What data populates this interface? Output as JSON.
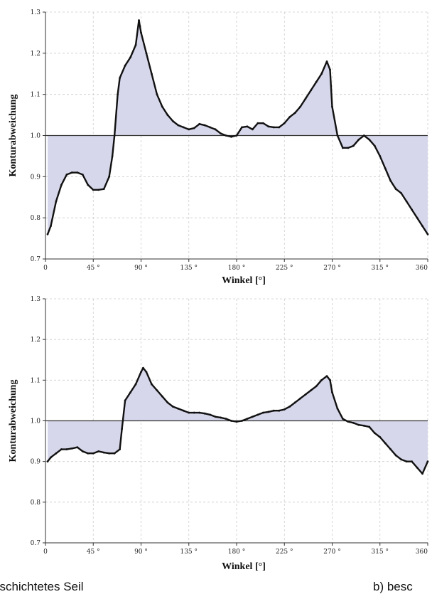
{
  "captions": {
    "a": "eschichtetes Seil",
    "b": "b)   besc"
  },
  "style": {
    "fill": "#d6d7ea",
    "line": "#111111",
    "reference_line": "#333333",
    "grid": "#cccccc"
  },
  "chart_data": [
    {
      "type": "line",
      "xlabel": "Winkel [°]",
      "ylabel": "Konturabweichung",
      "xlim": [
        0,
        360
      ],
      "ylim": [
        0.7,
        1.3
      ],
      "xticks": [
        "0",
        "45 °",
        "90 °",
        "135 °",
        "180 °",
        "225 °",
        "270 °",
        "315 °",
        "360"
      ],
      "yticks": [
        "0.7",
        "0.8",
        "0.9",
        "1.0",
        "1.1",
        "1.2",
        "1.3"
      ],
      "reference": 1.0,
      "grid": true,
      "x": [
        2,
        5,
        10,
        15,
        20,
        25,
        30,
        35,
        40,
        45,
        50,
        55,
        60,
        63,
        65,
        68,
        70,
        75,
        80,
        85,
        88,
        90,
        95,
        100,
        105,
        110,
        115,
        120,
        125,
        130,
        135,
        140,
        145,
        150,
        155,
        160,
        165,
        170,
        175,
        180,
        185,
        190,
        195,
        200,
        205,
        210,
        215,
        220,
        225,
        230,
        235,
        240,
        245,
        250,
        255,
        260,
        265,
        268,
        270,
        275,
        280,
        285,
        290,
        295,
        300,
        305,
        310,
        315,
        320,
        325,
        330,
        335,
        340,
        345,
        350,
        355,
        360
      ],
      "y": [
        0.76,
        0.78,
        0.84,
        0.88,
        0.905,
        0.91,
        0.91,
        0.905,
        0.88,
        0.868,
        0.868,
        0.87,
        0.9,
        0.95,
        1.0,
        1.1,
        1.14,
        1.17,
        1.19,
        1.22,
        1.28,
        1.25,
        1.2,
        1.15,
        1.1,
        1.07,
        1.05,
        1.035,
        1.025,
        1.02,
        1.015,
        1.018,
        1.028,
        1.025,
        1.02,
        1.015,
        1.005,
        1.0,
        0.997,
        1.0,
        1.02,
        1.022,
        1.015,
        1.03,
        1.03,
        1.022,
        1.02,
        1.02,
        1.03,
        1.045,
        1.055,
        1.07,
        1.09,
        1.11,
        1.13,
        1.15,
        1.18,
        1.16,
        1.07,
        1.0,
        0.97,
        0.97,
        0.975,
        0.99,
        1.0,
        0.99,
        0.975,
        0.95,
        0.92,
        0.89,
        0.87,
        0.86,
        0.84,
        0.82,
        0.8,
        0.78,
        0.76
      ]
    },
    {
      "type": "line",
      "xlabel": "Winkel [°]",
      "ylabel": "Konturabweichung",
      "xlim": [
        0,
        360
      ],
      "ylim": [
        0.7,
        1.3
      ],
      "xticks": [
        "0",
        "45 °",
        "90 °",
        "135 °",
        "180 °",
        "225 °",
        "270 °",
        "315 °",
        "360"
      ],
      "yticks": [
        "0.7",
        "0.8",
        "0.9",
        "1.0",
        "1.1",
        "1.2",
        "1.3"
      ],
      "reference": 1.0,
      "grid": true,
      "x": [
        2,
        5,
        10,
        15,
        20,
        25,
        30,
        35,
        40,
        45,
        50,
        55,
        60,
        65,
        70,
        72,
        75,
        80,
        85,
        90,
        92,
        95,
        100,
        105,
        110,
        115,
        120,
        125,
        130,
        135,
        140,
        145,
        150,
        155,
        160,
        165,
        170,
        175,
        180,
        185,
        190,
        195,
        200,
        205,
        210,
        215,
        220,
        225,
        230,
        235,
        240,
        245,
        250,
        255,
        260,
        265,
        268,
        270,
        275,
        280,
        285,
        290,
        295,
        300,
        305,
        310,
        315,
        320,
        325,
        330,
        335,
        340,
        345,
        350,
        355,
        360
      ],
      "y": [
        0.9,
        0.91,
        0.92,
        0.93,
        0.93,
        0.932,
        0.935,
        0.925,
        0.92,
        0.92,
        0.925,
        0.922,
        0.92,
        0.92,
        0.93,
        0.98,
        1.05,
        1.07,
        1.09,
        1.12,
        1.13,
        1.12,
        1.09,
        1.075,
        1.06,
        1.045,
        1.035,
        1.03,
        1.025,
        1.02,
        1.02,
        1.02,
        1.018,
        1.015,
        1.01,
        1.008,
        1.005,
        1.0,
        0.998,
        1.0,
        1.005,
        1.01,
        1.015,
        1.02,
        1.022,
        1.025,
        1.025,
        1.028,
        1.035,
        1.045,
        1.055,
        1.065,
        1.075,
        1.085,
        1.1,
        1.11,
        1.1,
        1.07,
        1.03,
        1.005,
        0.998,
        0.995,
        0.99,
        0.988,
        0.985,
        0.97,
        0.96,
        0.945,
        0.93,
        0.915,
        0.905,
        0.9,
        0.9,
        0.885,
        0.87,
        0.9
      ]
    }
  ]
}
